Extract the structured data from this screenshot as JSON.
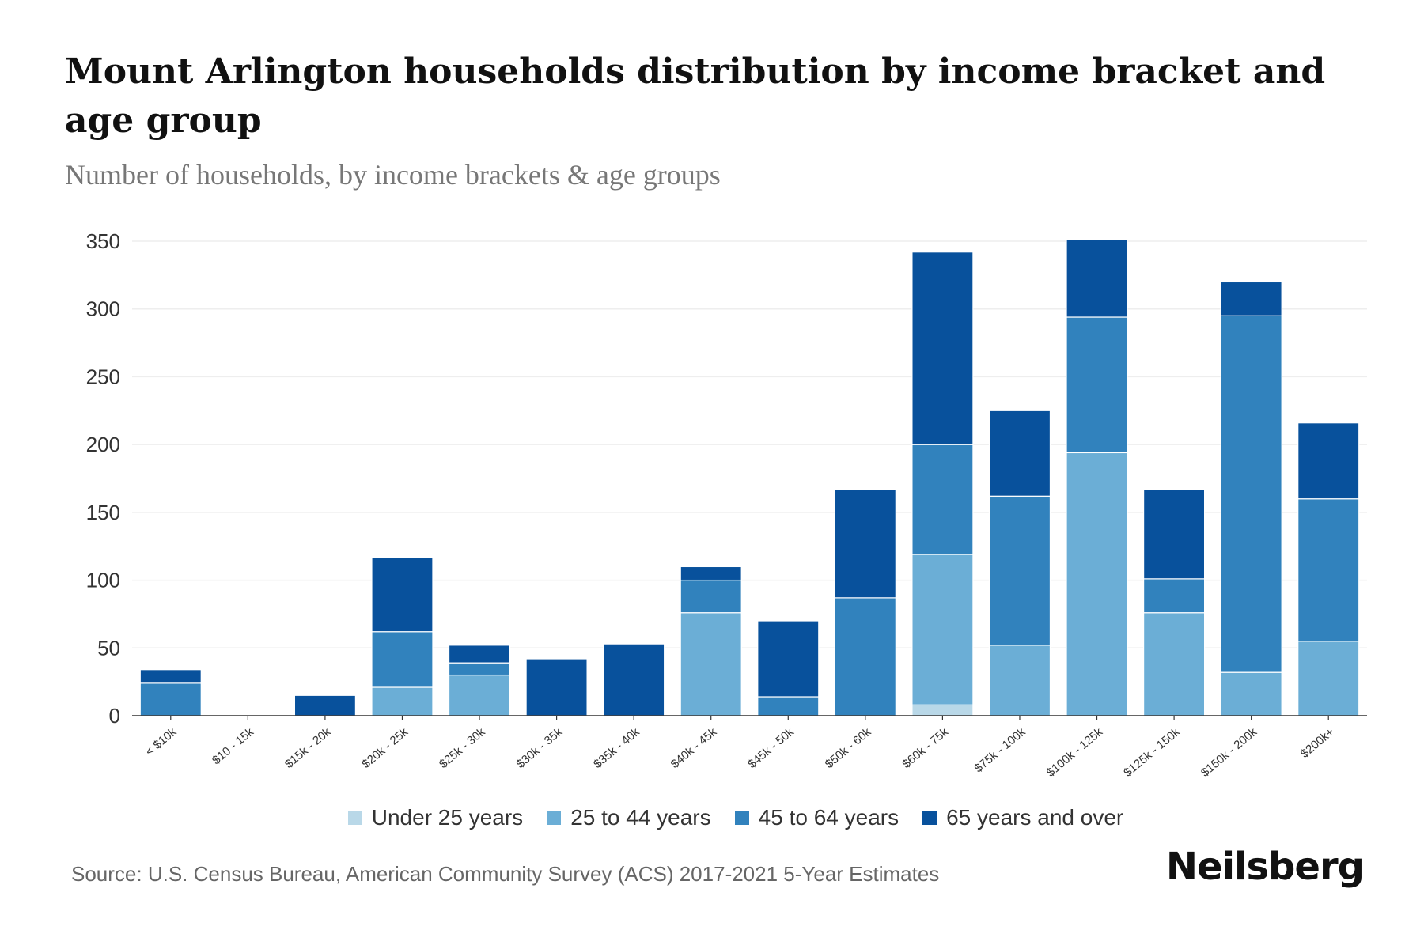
{
  "chart_data": {
    "type": "bar",
    "stacked": true,
    "title": "Mount Arlington households distribution by income bracket and age group",
    "subtitle": "Number of households, by income brackets & age groups",
    "xlabel": "",
    "ylabel": "",
    "ylim": [
      0,
      350
    ],
    "yticks": [
      0,
      50,
      100,
      150,
      200,
      250,
      300,
      350
    ],
    "grid": true,
    "legend_position": "bottom",
    "categories": [
      "< $10k",
      "$10 - 15k",
      "$15k - 20k",
      "$20k - 25k",
      "$25k - 30k",
      "$30k - 35k",
      "$35k - 40k",
      "$40k - 45k",
      "$45k - 50k",
      "$50k - 60k",
      "$60k - 75k",
      "$75k - 100k",
      "$100k - 125k",
      "$125k - 150k",
      "$150k - 200k",
      "$200k+"
    ],
    "series": [
      {
        "name": "Under 25 years",
        "color": "#b9d8e8",
        "values": [
          0,
          0,
          0,
          0,
          0,
          0,
          0,
          0,
          0,
          0,
          8,
          0,
          0,
          0,
          0,
          0
        ]
      },
      {
        "name": "25 to 44 years",
        "color": "#6baed6",
        "values": [
          0,
          0,
          0,
          21,
          30,
          0,
          0,
          76,
          0,
          0,
          111,
          52,
          194,
          76,
          32,
          55
        ]
      },
      {
        "name": "45 to 64 years",
        "color": "#3182bd",
        "values": [
          24,
          0,
          0,
          41,
          9,
          0,
          0,
          24,
          14,
          87,
          81,
          110,
          100,
          25,
          263,
          105
        ]
      },
      {
        "name": "65 years and over",
        "color": "#08519c",
        "values": [
          10,
          0,
          15,
          55,
          13,
          42,
          53,
          10,
          56,
          80,
          142,
          63,
          57,
          66,
          25,
          56
        ]
      }
    ]
  },
  "source": "Source: U.S. Census Bureau, American Community Survey (ACS) 2017-2021 5-Year Estimates",
  "logo": "Neilsberg"
}
